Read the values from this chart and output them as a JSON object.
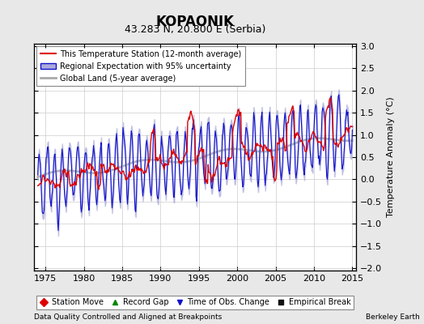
{
  "title": "KOPAONIK",
  "subtitle": "43.283 N, 20.800 E (Serbia)",
  "xlabel_bottom": "Data Quality Controlled and Aligned at Breakpoints",
  "xlabel_right": "Berkeley Earth",
  "ylabel": "Temperature Anomaly (°C)",
  "xlim": [
    1973.5,
    2015.5
  ],
  "ylim": [
    -2.05,
    3.05
  ],
  "yticks_right": [
    -2,
    -1.5,
    -1,
    -0.5,
    0,
    0.5,
    1,
    1.5,
    2,
    2.5,
    3
  ],
  "xticks": [
    1975,
    1980,
    1985,
    1990,
    1995,
    2000,
    2005,
    2010,
    2015
  ],
  "background_color": "#e8e8e8",
  "plot_bg_color": "#ffffff",
  "red_line_color": "#dd0000",
  "blue_line_color": "#1111cc",
  "blue_fill_color": "#aaaadd",
  "gray_line_color": "#aaaaaa",
  "grid_color": "#cccccc",
  "legend_items": [
    "This Temperature Station (12-month average)",
    "Regional Expectation with 95% uncertainty",
    "Global Land (5-year average)"
  ],
  "marker_legend": [
    {
      "label": "Station Move",
      "color": "#dd0000",
      "marker": "D"
    },
    {
      "label": "Record Gap",
      "color": "#008800",
      "marker": "^"
    },
    {
      "label": "Time of Obs. Change",
      "color": "#1111cc",
      "marker": "v"
    },
    {
      "label": "Empirical Break",
      "color": "#111111",
      "marker": "s"
    }
  ]
}
